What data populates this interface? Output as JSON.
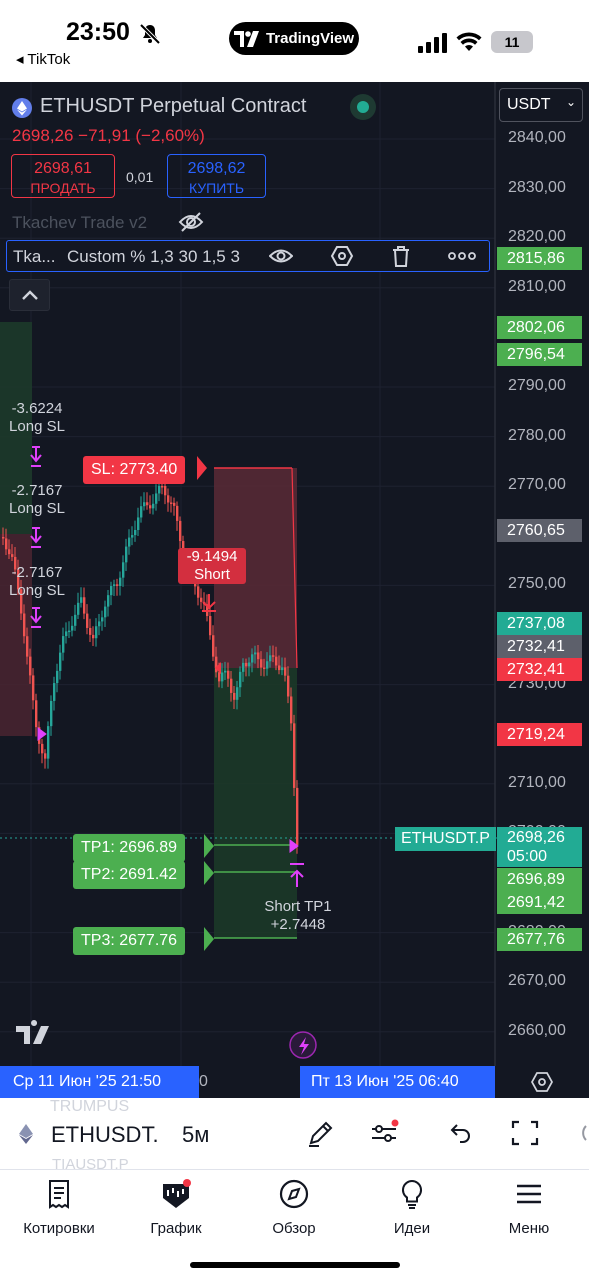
{
  "status": {
    "time": "23:50",
    "back_app": "◂ TikTok",
    "center_pill": "TradingView",
    "battery": "11"
  },
  "chart": {
    "symbol_title": "ETHUSDT Perpetual Contract",
    "last_line": "2698,26  −71,91 (−2,60%)",
    "sell_price": "2698,61",
    "sell_label": "ПРОДАТЬ",
    "spread": "0,01",
    "buy_price": "2698,62",
    "buy_label": "КУПИТЬ",
    "indicator_name": "Tkachev Trade v2",
    "indicator_short": "Tka...",
    "indicator_params": "Custom % 1,3 30 1,5 3",
    "axis_currency": "USDT",
    "date_left": "Ср 11 Июн '25   21:50",
    "date_left_tail": "0",
    "date_right": "Пт 13 Июн '25   06:40",
    "symbol_tag": "ETHUSDT.P",
    "price_ticks": [
      "2840,00",
      "2830,00",
      "2820,00",
      "2810,00",
      "2790,00",
      "2780,00",
      "2770,00",
      "2750,00",
      "2730,00",
      "2710,00",
      "2700,00",
      "2680,00",
      "2670,00",
      "2660,00"
    ],
    "badges": {
      "b2815": "2815,86",
      "b2802": "2802,06",
      "b2796": "2796,54",
      "b2760": "2760,65",
      "b2737": "2737,08",
      "b2732a": "2732,41",
      "b2732b": "2732,41",
      "b2719": "2719,24",
      "b2698": "2698,26",
      "countdown": "05:00",
      "b2696": "2696,89",
      "b2691": "2691,42",
      "b2677": "2677,76"
    },
    "labels": {
      "sl": "SL: 2773.40",
      "tp1": "TP1: 2696.89",
      "tp2": "TP2: 2691.42",
      "tp3": "TP3: 2677.76",
      "long_sl_1_val": "-3.6224",
      "long_sl_1": "Long SL",
      "long_sl_2_val": "-2.7167",
      "long_sl_2": "Long SL",
      "long_sl_3_val": "-2.7167",
      "long_sl_3": "Long SL",
      "short_val": "-9.1494",
      "short": "Short",
      "short_tp1": "Short TP1",
      "short_tp1_val": "+2.7448"
    },
    "colors": {
      "background": "#131722",
      "up": "#26a69a",
      "down": "#ef5350",
      "buy": "#2962ff",
      "tp": "#4caf50",
      "marker": "#e040fb"
    }
  },
  "toolbar": {
    "ghost_top": "TRUMPUS",
    "symbol": "ETHUSDT.",
    "interval": "5м",
    "ghost_bottom": "TIAUSDT.P"
  },
  "nav": {
    "items": [
      {
        "label": "Котировки",
        "icon": "quotes-icon"
      },
      {
        "label": "График",
        "icon": "chart-icon"
      },
      {
        "label": "Обзор",
        "icon": "compass-icon"
      },
      {
        "label": "Идеи",
        "icon": "bulb-icon"
      },
      {
        "label": "Меню",
        "icon": "menu-icon"
      }
    ]
  }
}
